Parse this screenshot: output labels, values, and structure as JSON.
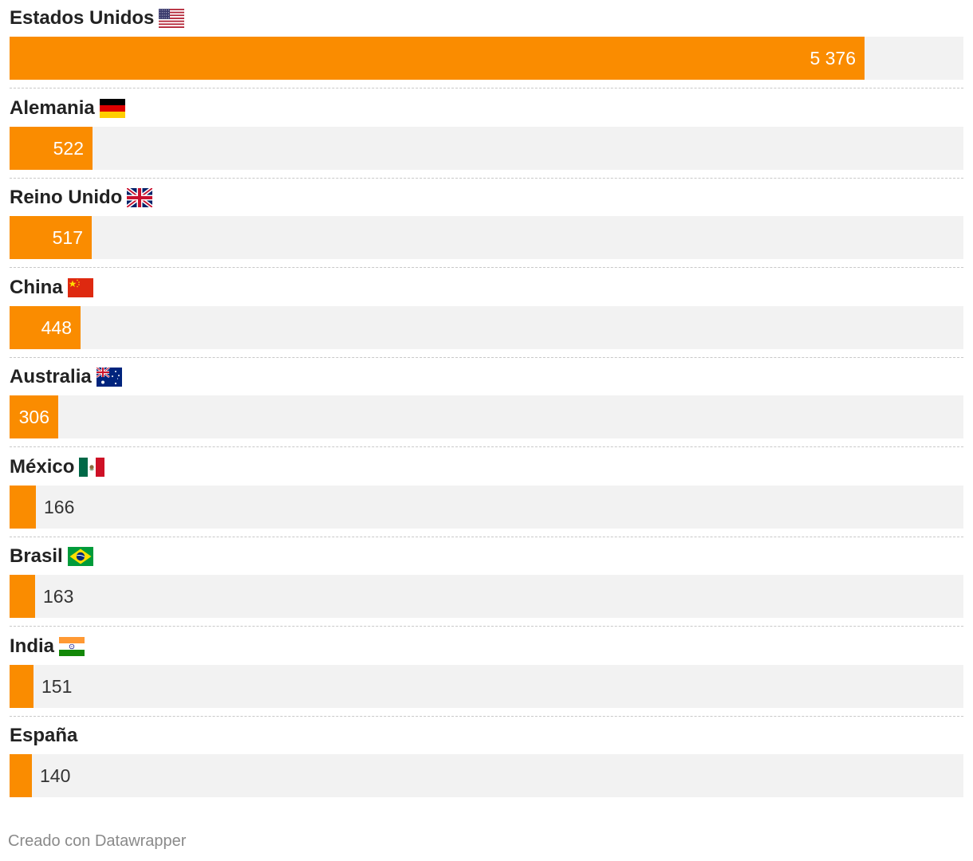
{
  "chart_data": {
    "type": "bar",
    "orientation": "horizontal",
    "categories": [
      "Estados Unidos",
      "Alemania",
      "Reino Unido",
      "China",
      "Australia",
      "México",
      "Brasil",
      "India",
      "España"
    ],
    "values": [
      5376,
      522,
      517,
      448,
      306,
      166,
      163,
      151,
      140
    ],
    "value_labels": [
      "5 376",
      "522",
      "517",
      "448",
      "306",
      "166",
      "163",
      "151",
      "140"
    ],
    "flags": [
      "us-flag-icon",
      "germany-flag-icon",
      "uk-flag-icon",
      "china-flag-icon",
      "australia-flag-icon",
      "mexico-flag-icon",
      "brazil-flag-icon",
      "india-flag-icon",
      ""
    ],
    "xlim": [
      0,
      6000
    ],
    "bar_color": "#fa8c00",
    "track_color": "#f2f2f2",
    "grid": false
  },
  "footer": {
    "credit": "Creado con Datawrapper"
  }
}
